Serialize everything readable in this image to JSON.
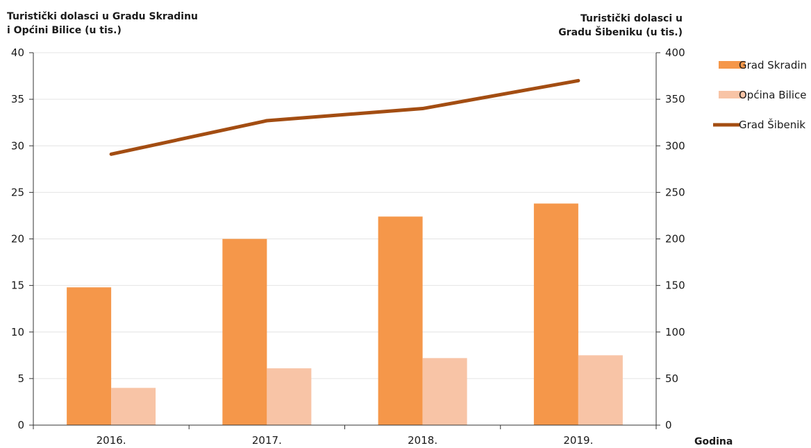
{
  "chart_data": {
    "type": "bar",
    "categories": [
      "2016.",
      "2017.",
      "2018.",
      "2019."
    ],
    "series": [
      {
        "name": "Grad Skradin",
        "type": "bar",
        "axis": "left",
        "color": "#f5974a",
        "values": [
          14.8,
          20.0,
          22.4,
          23.8
        ]
      },
      {
        "name": "Općina Bilice",
        "type": "bar",
        "axis": "left",
        "color": "#f8c4a6",
        "values": [
          4.0,
          6.1,
          7.2,
          7.5
        ]
      },
      {
        "name": "Grad Šibenik",
        "type": "line",
        "axis": "right",
        "color": "#a34d12",
        "values": [
          291,
          327,
          340,
          370
        ]
      }
    ],
    "ylabel_left": [
      "Turistički dolasci u Gradu Skradinu",
      "i Općini Bilice (u tis.)"
    ],
    "ylabel_right": [
      "Turistički dolasci u",
      "Gradu Šibeniku (u tis.)"
    ],
    "xlabel": "Godina",
    "ylim_left": [
      0,
      40
    ],
    "yticks_left": [
      "0",
      "5",
      "10",
      "15",
      "20",
      "25",
      "30",
      "35",
      "40"
    ],
    "ylim_right": [
      0,
      400
    ],
    "yticks_right": [
      "0",
      "50",
      "100",
      "150",
      "200",
      "250",
      "300",
      "350",
      "400"
    ],
    "grid": true,
    "legend_position": "right"
  }
}
